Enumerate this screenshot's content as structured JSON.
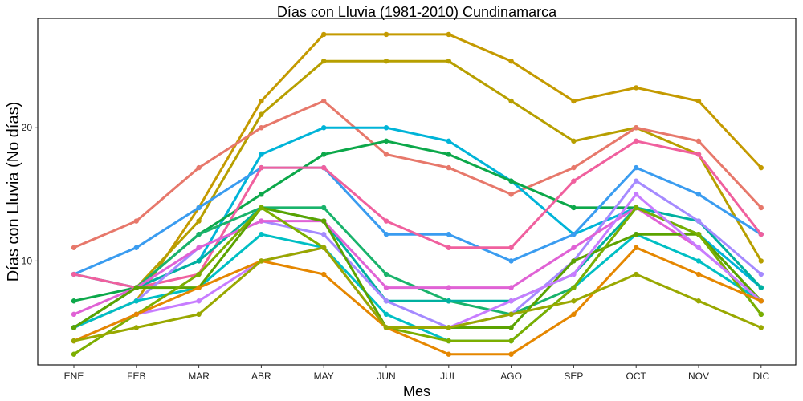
{
  "chart_data": {
    "type": "line",
    "title": "Días con Lluvia (1981-2010)  Cundinamarca",
    "xlabel": "Mes",
    "ylabel": "Días con Lluvia (No días)",
    "categories": [
      "ENE",
      "FEB",
      "MAR",
      "ABR",
      "MAY",
      "JUN",
      "JUL",
      "AGO",
      "SEP",
      "OCT",
      "NOV",
      "DIC"
    ],
    "yticks": [
      10,
      20
    ],
    "ylim": [
      2.2,
      28.2
    ],
    "grid": false,
    "legend": "none",
    "series": [
      {
        "color": "#C49A00",
        "values": [
          5,
          7,
          14,
          22,
          27,
          27,
          27,
          25,
          22,
          23,
          22,
          17
        ]
      },
      {
        "color": "#B79F00",
        "values": [
          5,
          8,
          13,
          21,
          25,
          25,
          25,
          22,
          19,
          20,
          18,
          10
        ]
      },
      {
        "color": "#E7786B",
        "values": [
          11,
          13,
          17,
          20,
          22,
          18,
          17,
          15,
          17,
          20,
          19,
          14
        ]
      },
      {
        "color": "#00B4D8",
        "values": [
          9,
          8,
          10,
          18,
          20,
          20,
          19,
          16,
          12,
          14,
          12,
          8
        ]
      },
      {
        "color": "#0CA84A",
        "values": [
          7,
          8,
          12,
          15,
          18,
          19,
          18,
          16,
          14,
          14,
          12,
          6
        ]
      },
      {
        "color": "#3A9CF0",
        "values": [
          9,
          11,
          14,
          17,
          17,
          12,
          12,
          10,
          12,
          17,
          15,
          12
        ]
      },
      {
        "color": "#F0609E",
        "values": [
          9,
          8,
          9,
          17,
          17,
          13,
          11,
          11,
          16,
          19,
          18,
          12
        ]
      },
      {
        "color": "#19B36B",
        "values": [
          5,
          8,
          12,
          14,
          14,
          9,
          7,
          6,
          8,
          14,
          12,
          7
        ]
      },
      {
        "color": "#00B0A0",
        "values": [
          5,
          8,
          10,
          14,
          13,
          7,
          7,
          7,
          9,
          14,
          13,
          8
        ]
      },
      {
        "color": "#A58AFF",
        "values": [
          5,
          7,
          11,
          13,
          12,
          7,
          5,
          6,
          10,
          16,
          13,
          9
        ]
      },
      {
        "color": "#E062D5",
        "values": [
          6,
          8,
          11,
          13,
          13,
          8,
          8,
          8,
          11,
          14,
          11,
          7
        ]
      },
      {
        "color": "#00BFC4",
        "values": [
          5,
          7,
          8,
          12,
          11,
          6,
          4,
          4,
          8,
          12,
          10,
          7
        ]
      },
      {
        "color": "#5BA300",
        "values": [
          5,
          8,
          8,
          14,
          13,
          5,
          5,
          5,
          10,
          12,
          12,
          7
        ]
      },
      {
        "color": "#7CAE00",
        "values": [
          3,
          6,
          9,
          14,
          11,
          5,
          4,
          4,
          8,
          14,
          12,
          6
        ]
      },
      {
        "color": "#C77CFF",
        "values": [
          4,
          6,
          7,
          10,
          11,
          5,
          5,
          7,
          9,
          15,
          11,
          7
        ]
      },
      {
        "color": "#E58700",
        "values": [
          4,
          6,
          8,
          10,
          9,
          5,
          3,
          3,
          6,
          11,
          9,
          7
        ]
      },
      {
        "color": "#99A800",
        "values": [
          4,
          5,
          6,
          10,
          11,
          5,
          5,
          6,
          7,
          9,
          7,
          5
        ]
      }
    ]
  }
}
